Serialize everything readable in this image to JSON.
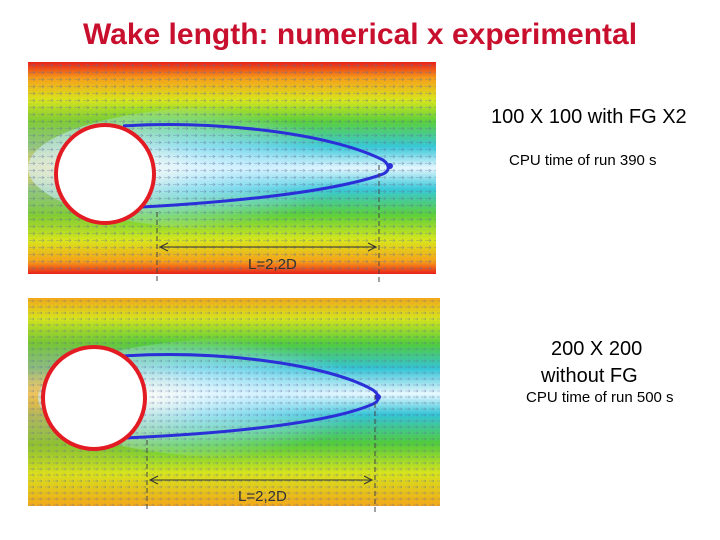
{
  "slide": {
    "title": "Wake length: numerical x experimental"
  },
  "case1": {
    "grid_label": "100 X 100 with  FG X2",
    "cpu_label": "CPU time of run 390 s",
    "length_label": "L=2,2D"
  },
  "case2": {
    "grid_label_line1": "200 X 200",
    "grid_label_line2": "without  FG",
    "cpu_label": "CPU time of run 500 s",
    "length_label": "L=2,2D"
  },
  "colors": {
    "title": "#c8102e",
    "cylinder_outline": "#e31b23",
    "wake_curve": "#2a2fd8"
  }
}
